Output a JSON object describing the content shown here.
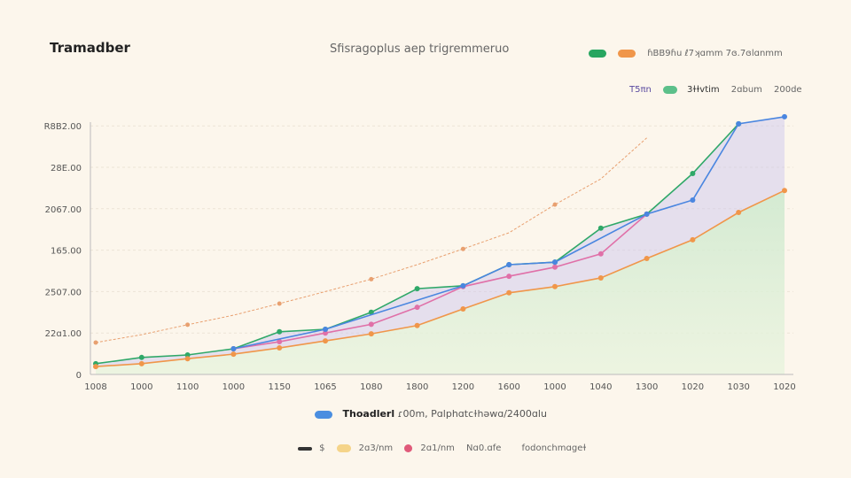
{
  "title": "Tramadber",
  "subtitle": "Sfisragoplus aep trigremmeruo",
  "legend_top": [
    {
      "color": "#27a660",
      "label": ""
    },
    {
      "color": "#f0964a",
      "label": "ɦBB9ɦu ℓ7ʞɑmm  7ɞ.7ɞlɑnmm"
    }
  ],
  "legend_top2": [
    {
      "color": "",
      "label": "T5πn"
    },
    {
      "color": "#5cc08a",
      "label": "3ɫɫvtim"
    },
    {
      "color": "",
      "label": "2ɑbum"
    },
    {
      "color": "",
      "label": "200de"
    }
  ],
  "legend_bottom": {
    "color": "#4a8ee0",
    "label": "Thoadlerl",
    "detail": "ɾ00m, Pɑlphɑtcɫhəwɑ/2400ɑlu"
  },
  "legend_bottom2": [
    {
      "color": "#333333",
      "label": "$"
    },
    {
      "color": "#f5d489",
      "label": "2ɑ3/nm"
    },
    {
      "color": "#e05a7a",
      "label": "2ɑ1/nm"
    },
    {
      "color": "",
      "label": "Nɑ0.ɑfe"
    },
    {
      "color": "",
      "label": "fodonchmɑgeɫ"
    }
  ],
  "chart_data": {
    "type": "line",
    "title": "Tramadber",
    "subtitle": "Sfisragoplus aep trigremmeruo",
    "x": [
      "1008",
      "1000",
      "1100",
      "1000",
      "1150",
      "1065",
      "1080",
      "1800",
      "1200",
      "1600",
      "1000",
      "1040",
      "1300",
      "1020",
      "1030",
      "1020"
    ],
    "ylim": [
      0,
      6.1
    ],
    "yticks": [
      {
        "value": 0,
        "label": "0"
      },
      {
        "value": 1,
        "label": "22ɑ1.00"
      },
      {
        "value": 2,
        "label": "2507.00"
      },
      {
        "value": 3,
        "label": "165.00"
      },
      {
        "value": 4,
        "label": "2067.00"
      },
      {
        "value": 5,
        "label": "28E.00"
      },
      {
        "value": 6,
        "label": "R8B2.00"
      }
    ],
    "grid": true,
    "series": [
      {
        "key": "dashed",
        "color": "#e8a070",
        "dashed": true,
        "values": [
          0.77,
          0.96,
          1.2,
          1.43,
          1.71,
          2.0,
          2.3,
          2.65,
          3.03,
          3.42,
          4.1,
          4.72,
          5.71,
          null,
          null,
          null
        ]
      },
      {
        "key": "green",
        "color": "#2fa868",
        "values": [
          0.26,
          0.41,
          0.47,
          0.62,
          1.03,
          1.09,
          1.5,
          2.07,
          2.14,
          2.65,
          2.71,
          3.53,
          3.87,
          4.85,
          6.05,
          null
        ]
      },
      {
        "key": "pink",
        "color": "#e070a8",
        "values": [
          null,
          null,
          null,
          0.62,
          0.79,
          1.0,
          1.21,
          1.62,
          2.12,
          2.37,
          2.59,
          2.91,
          3.87,
          null,
          null,
          null
        ]
      },
      {
        "key": "blue",
        "color": "#4a86e0",
        "values": [
          null,
          null,
          null,
          0.62,
          null,
          1.09,
          null,
          null,
          2.14,
          2.65,
          2.71,
          null,
          3.87,
          4.21,
          6.05,
          6.22
        ]
      },
      {
        "key": "orange",
        "color": "#f0964a",
        "values": [
          0.19,
          0.26,
          0.38,
          0.49,
          0.64,
          0.81,
          0.98,
          1.18,
          1.58,
          1.97,
          2.12,
          2.33,
          2.8,
          3.25,
          3.91,
          4.44
        ]
      }
    ]
  }
}
